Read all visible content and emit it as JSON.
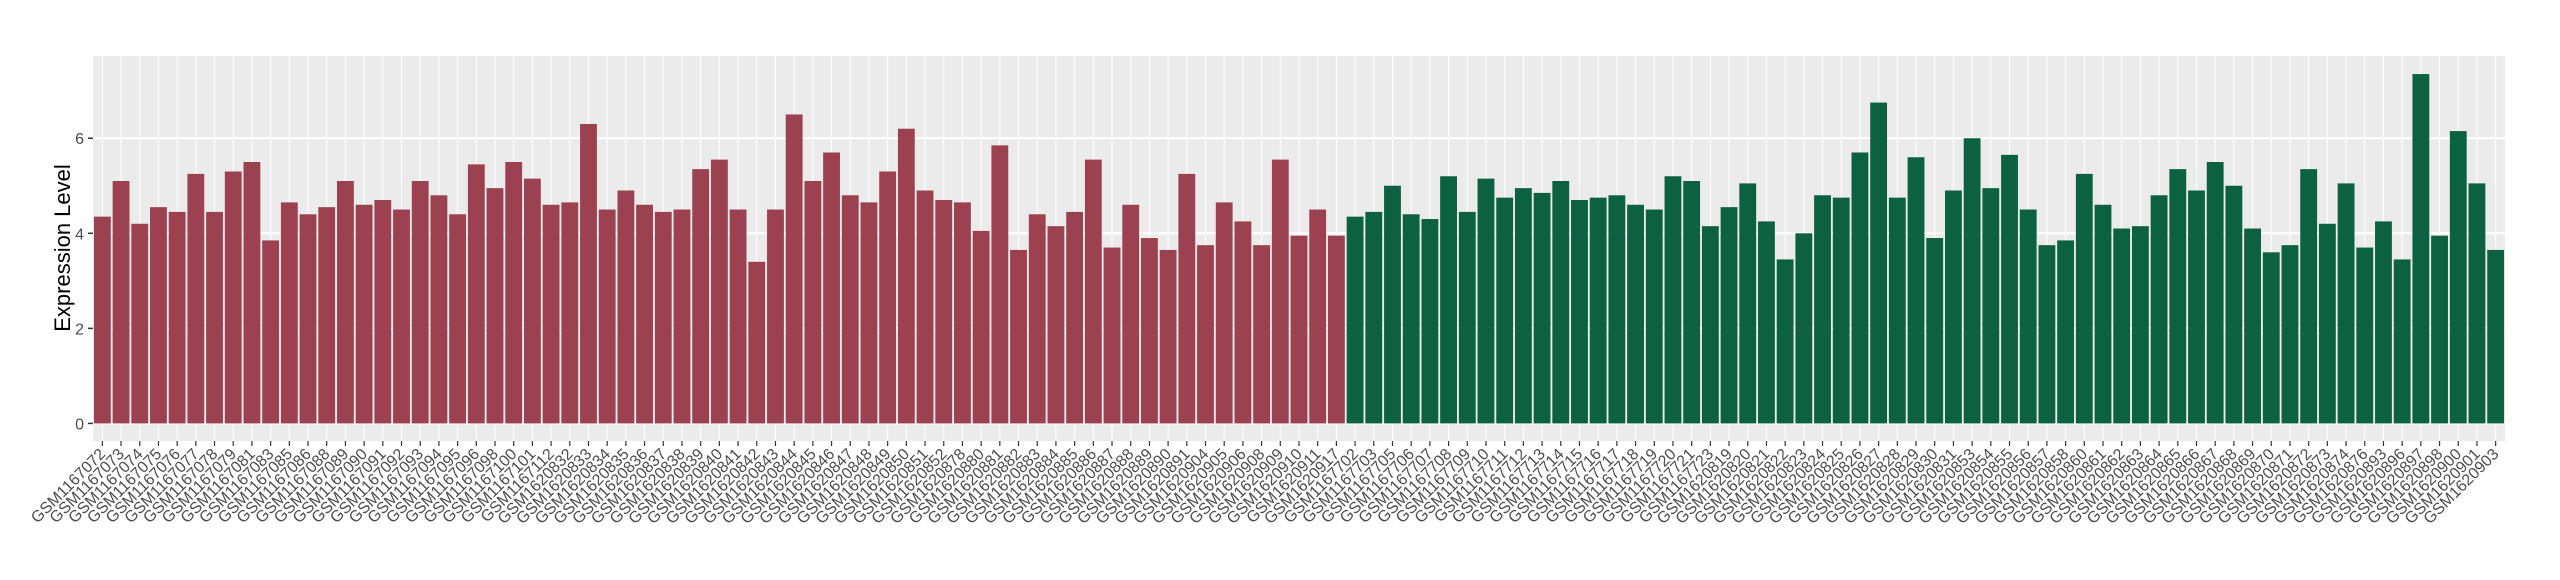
{
  "chart_data": {
    "type": "bar",
    "y_label": "Expression Level",
    "categories": [
      "GSM1167072",
      "GSM1167073",
      "GSM1167074",
      "GSM1167075",
      "GSM1167076",
      "GSM1167077",
      "GSM1167078",
      "GSM1167079",
      "GSM1167081",
      "GSM1167083",
      "GSM1167085",
      "GSM1167086",
      "GSM1167088",
      "GSM1167089",
      "GSM1167090",
      "GSM1167091",
      "GSM1167092",
      "GSM1167093",
      "GSM1167094",
      "GSM1167095",
      "GSM1167096",
      "GSM1167098",
      "GSM1167100",
      "GSM1167101",
      "GSM1167112",
      "GSM1620832",
      "GSM1620833",
      "GSM1620834",
      "GSM1620835",
      "GSM1620836",
      "GSM1620837",
      "GSM1620838",
      "GSM1620839",
      "GSM1620840",
      "GSM1620841",
      "GSM1620842",
      "GSM1620843",
      "GSM1620844",
      "GSM1620845",
      "GSM1620846",
      "GSM1620847",
      "GSM1620848",
      "GSM1620849",
      "GSM1620850",
      "GSM1620851",
      "GSM1620852",
      "GSM1620878",
      "GSM1620880",
      "GSM1620881",
      "GSM1620882",
      "GSM1620883",
      "GSM1620884",
      "GSM1620885",
      "GSM1620886",
      "GSM1620887",
      "GSM1620888",
      "GSM1620889",
      "GSM1620890",
      "GSM1620891",
      "GSM1620904",
      "GSM1620905",
      "GSM1620906",
      "GSM1620908",
      "GSM1620909",
      "GSM1620910",
      "GSM1620911",
      "GSM1620917",
      "GSM1167702",
      "GSM1167703",
      "GSM1167705",
      "GSM1167706",
      "GSM1167707",
      "GSM1167708",
      "GSM1167709",
      "GSM1167710",
      "GSM1167711",
      "GSM1167712",
      "GSM1167713",
      "GSM1167714",
      "GSM1167715",
      "GSM1167716",
      "GSM1167717",
      "GSM1167718",
      "GSM1167719",
      "GSM1167720",
      "GSM1167721",
      "GSM1167723",
      "GSM1620819",
      "GSM1620820",
      "GSM1620821",
      "GSM1620822",
      "GSM1620823",
      "GSM1620824",
      "GSM1620825",
      "GSM1620826",
      "GSM1620827",
      "GSM1620828",
      "GSM1620829",
      "GSM1620830",
      "GSM1620831",
      "GSM1620853",
      "GSM1620854",
      "GSM1620855",
      "GSM1620856",
      "GSM1620857",
      "GSM1620858",
      "GSM1620860",
      "GSM1620861",
      "GSM1620862",
      "GSM1620863",
      "GSM1620864",
      "GSM1620865",
      "GSM1620866",
      "GSM1620867",
      "GSM1620868",
      "GSM1620869",
      "GSM1620870",
      "GSM1620871",
      "GSM1620872",
      "GSM1620873",
      "GSM1620874",
      "GSM1620876",
      "GSM1620893",
      "GSM1620896",
      "GSM1620897",
      "GSM1620898",
      "GSM1620900",
      "GSM1620901",
      "GSM1620903"
    ],
    "values": [
      4.35,
      5.1,
      4.2,
      4.55,
      4.45,
      5.25,
      4.45,
      5.3,
      5.5,
      3.85,
      4.65,
      4.4,
      4.55,
      5.1,
      4.6,
      4.7,
      4.5,
      5.1,
      4.8,
      4.4,
      5.45,
      4.95,
      5.5,
      5.15,
      4.6,
      4.65,
      6.3,
      4.5,
      4.9,
      4.6,
      4.45,
      4.5,
      5.35,
      5.55,
      4.5,
      3.4,
      4.5,
      6.5,
      5.1,
      5.7,
      4.8,
      4.65,
      5.3,
      6.2,
      4.9,
      4.7,
      4.65,
      4.05,
      5.85,
      3.65,
      4.4,
      4.15,
      4.45,
      5.55,
      3.7,
      4.6,
      3.9,
      3.65,
      5.25,
      3.75,
      4.65,
      4.25,
      3.75,
      5.55,
      3.95,
      4.5,
      3.95,
      4.35,
      4.45,
      5.0,
      4.4,
      4.3,
      5.2,
      4.45,
      5.15,
      4.75,
      4.95,
      4.85,
      5.1,
      4.7,
      4.75,
      4.8,
      4.6,
      4.5,
      5.2,
      5.1,
      4.15,
      4.55,
      5.05,
      4.25,
      3.45,
      4.0,
      4.8,
      4.75,
      5.7,
      6.75,
      4.75,
      5.6,
      3.9,
      4.9,
      6.0,
      4.95,
      5.65,
      4.5,
      3.75,
      3.85,
      5.25,
      4.6,
      4.1,
      4.15,
      4.8,
      5.35,
      4.9,
      5.5,
      5.0,
      4.1,
      3.6,
      3.75,
      5.35,
      4.2,
      5.05,
      3.7,
      4.25,
      3.45,
      7.35,
      3.95,
      6.15,
      5.05,
      3.65
    ],
    "colors": [
      "#9b4150",
      "#9b4150",
      "#9b4150",
      "#9b4150",
      "#9b4150",
      "#9b4150",
      "#9b4150",
      "#9b4150",
      "#9b4150",
      "#9b4150",
      "#9b4150",
      "#9b4150",
      "#9b4150",
      "#9b4150",
      "#9b4150",
      "#9b4150",
      "#9b4150",
      "#9b4150",
      "#9b4150",
      "#9b4150",
      "#9b4150",
      "#9b4150",
      "#9b4150",
      "#9b4150",
      "#9b4150",
      "#9b4150",
      "#9b4150",
      "#9b4150",
      "#9b4150",
      "#9b4150",
      "#9b4150",
      "#9b4150",
      "#9b4150",
      "#9b4150",
      "#9b4150",
      "#9b4150",
      "#9b4150",
      "#9b4150",
      "#9b4150",
      "#9b4150",
      "#9b4150",
      "#9b4150",
      "#9b4150",
      "#9b4150",
      "#9b4150",
      "#9b4150",
      "#9b4150",
      "#9b4150",
      "#9b4150",
      "#9b4150",
      "#9b4150",
      "#9b4150",
      "#9b4150",
      "#9b4150",
      "#9b4150",
      "#9b4150",
      "#9b4150",
      "#9b4150",
      "#9b4150",
      "#9b4150",
      "#9b4150",
      "#9b4150",
      "#9b4150",
      "#9b4150",
      "#9b4150",
      "#9b4150",
      "#9b4150",
      "#0b6141",
      "#0b6141",
      "#0b6141",
      "#0b6141",
      "#0b6141",
      "#0b6141",
      "#0b6141",
      "#0b6141",
      "#0b6141",
      "#0b6141",
      "#0b6141",
      "#0b6141",
      "#0b6141",
      "#0b6141",
      "#0b6141",
      "#0b6141",
      "#0b6141",
      "#0b6141",
      "#0b6141",
      "#0b6141",
      "#0b6141",
      "#0b6141",
      "#0b6141",
      "#0b6141",
      "#0b6141",
      "#0b6141",
      "#0b6141",
      "#0b6141",
      "#0b6141",
      "#0b6141",
      "#0b6141",
      "#0b6141",
      "#0b6141",
      "#0b6141",
      "#0b6141",
      "#0b6141",
      "#0b6141",
      "#0b6141",
      "#0b6141",
      "#0b6141",
      "#0b6141",
      "#0b6141",
      "#0b6141",
      "#0b6141",
      "#0b6141",
      "#0b6141",
      "#0b6141",
      "#0b6141",
      "#0b6141",
      "#0b6141",
      "#0b6141",
      "#0b6141",
      "#0b6141",
      "#0b6141",
      "#0b6141",
      "#0b6141",
      "#0b6141",
      "#0b6141",
      "#0b6141",
      "#0b6141",
      "#0b6141",
      "#0b6141"
    ],
    "ylim": [
      -0.37,
      7.73
    ],
    "yticks": [
      0,
      2,
      4,
      6
    ],
    "grid": true,
    "background": "#ebebeb"
  }
}
